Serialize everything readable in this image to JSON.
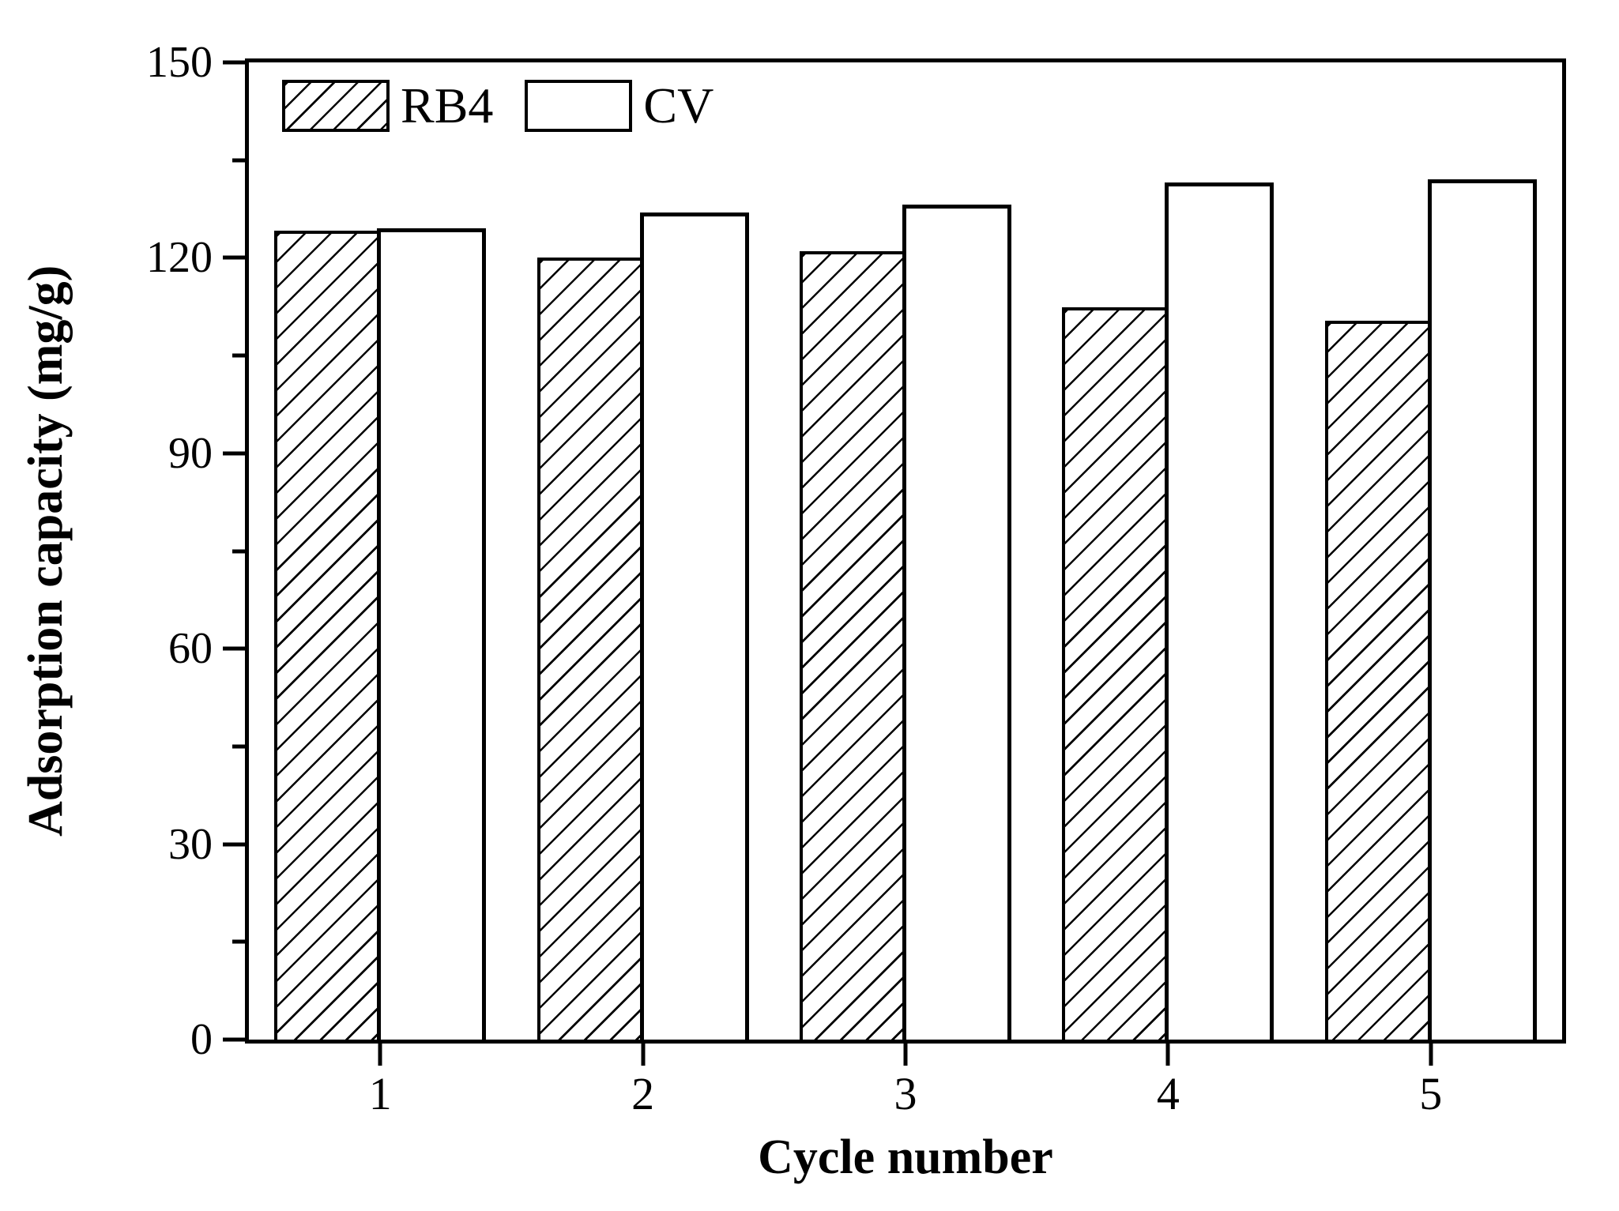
{
  "chart_data": {
    "type": "bar",
    "xlabel": "Cycle number",
    "ylabel": "Adsorption capacity (mg/g)",
    "categories": [
      "1",
      "2",
      "3",
      "4",
      "5"
    ],
    "series": [
      {
        "name": "RB4",
        "style": "hatched",
        "values": [
          124.2,
          120.0,
          121.0,
          112.4,
          110.3
        ]
      },
      {
        "name": "CV",
        "style": "open",
        "values": [
          124.5,
          127.0,
          128.2,
          131.6,
          132.1
        ]
      }
    ],
    "ylim": [
      0,
      150
    ],
    "y_major_ticks": [
      0,
      30,
      60,
      90,
      120,
      150
    ],
    "y_minor_step": 15,
    "x_tick_labels": [
      "1",
      "2",
      "3",
      "4",
      "5"
    ],
    "legend_position": "top-left",
    "grid": false,
    "frame": true,
    "bar_outline_color": "#000000",
    "hatch_direction": "/",
    "background_color": "#ffffff",
    "text_color": "#000000"
  },
  "legend": {
    "items": [
      {
        "label": "RB4"
      },
      {
        "label": "CV"
      }
    ]
  }
}
